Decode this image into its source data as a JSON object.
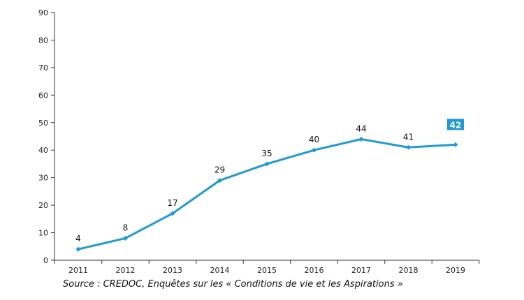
{
  "chart_data": {
    "type": "line",
    "x": [
      "2011",
      "2012",
      "2013",
      "2014",
      "2015",
      "2016",
      "2017",
      "2018",
      "2019"
    ],
    "series": [
      {
        "values": [
          4,
          8,
          17,
          29,
          35,
          40,
          44,
          41,
          42
        ],
        "color": "#1e9ad6"
      }
    ],
    "ylim": [
      0,
      90
    ],
    "yticks": [
      0,
      10,
      20,
      30,
      40,
      50,
      60,
      70,
      80,
      90
    ],
    "grid": false,
    "highlight_last_label": true,
    "highlight_color": "#1e9ad6",
    "axis_color": "#333333"
  },
  "source": "Source : CREDOC, Enquêtes sur les « Conditions de vie et les Aspirations »"
}
